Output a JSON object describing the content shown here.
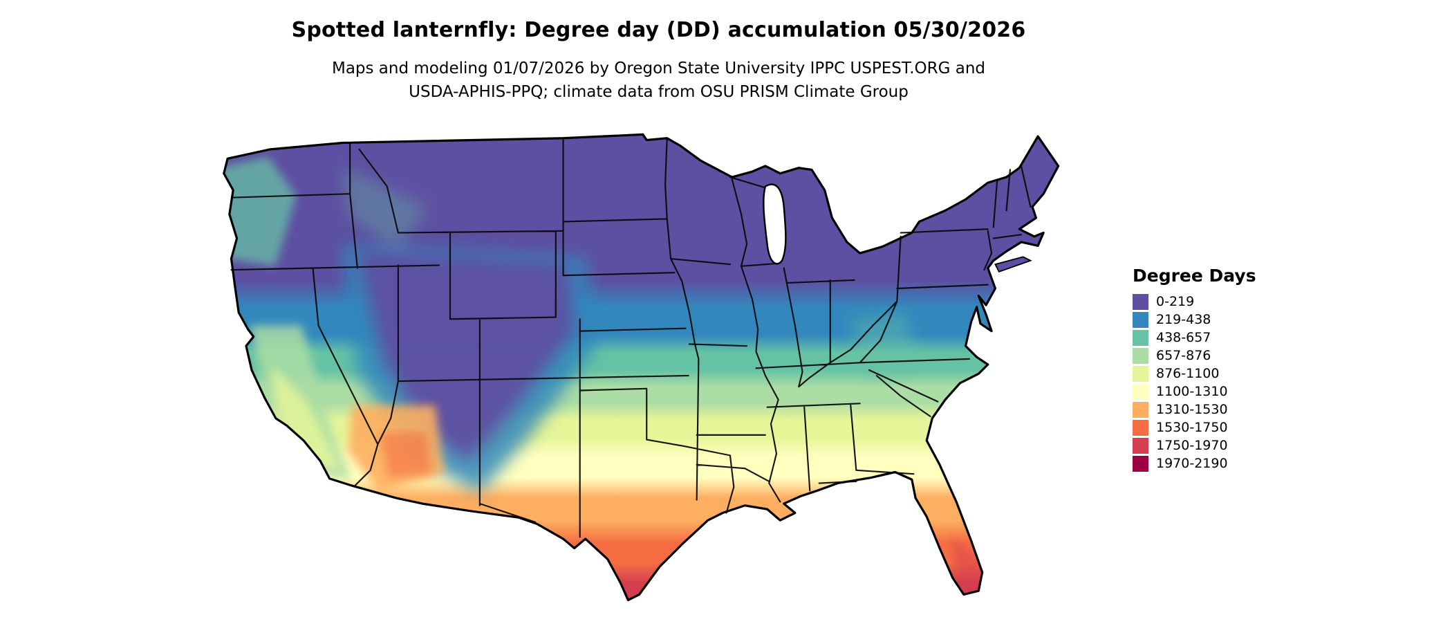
{
  "header": {
    "title": "Spotted lanternfly: Degree day (DD) accumulation 05/30/2026",
    "subtitle_lines": [
      "Maps and modeling 01/07/2026 by Oregon State University IPPC USPEST.ORG and",
      "USDA-APHIS-PPQ; climate data from OSU PRISM Climate Group"
    ]
  },
  "legend": {
    "title": "Degree Days",
    "items": [
      {
        "label": "0-219",
        "color": "#5e4fa2"
      },
      {
        "label": "219-438",
        "color": "#3288bd"
      },
      {
        "label": "438-657",
        "color": "#66c2a5"
      },
      {
        "label": "657-876",
        "color": "#abdda4"
      },
      {
        "label": "876-1100",
        "color": "#e6f598"
      },
      {
        "label": "1100-1310",
        "color": "#ffffbf"
      },
      {
        "label": "1310-1530",
        "color": "#fdae61"
      },
      {
        "label": "1530-1750",
        "color": "#f46d43"
      },
      {
        "label": "1750-1970",
        "color": "#d53e4f"
      },
      {
        "label": "1970-2190",
        "color": "#9e0142"
      }
    ]
  },
  "map": {
    "outline_color": "#000000",
    "state_line_color": "#0a0a0a",
    "water_color": "#ffffff"
  }
}
